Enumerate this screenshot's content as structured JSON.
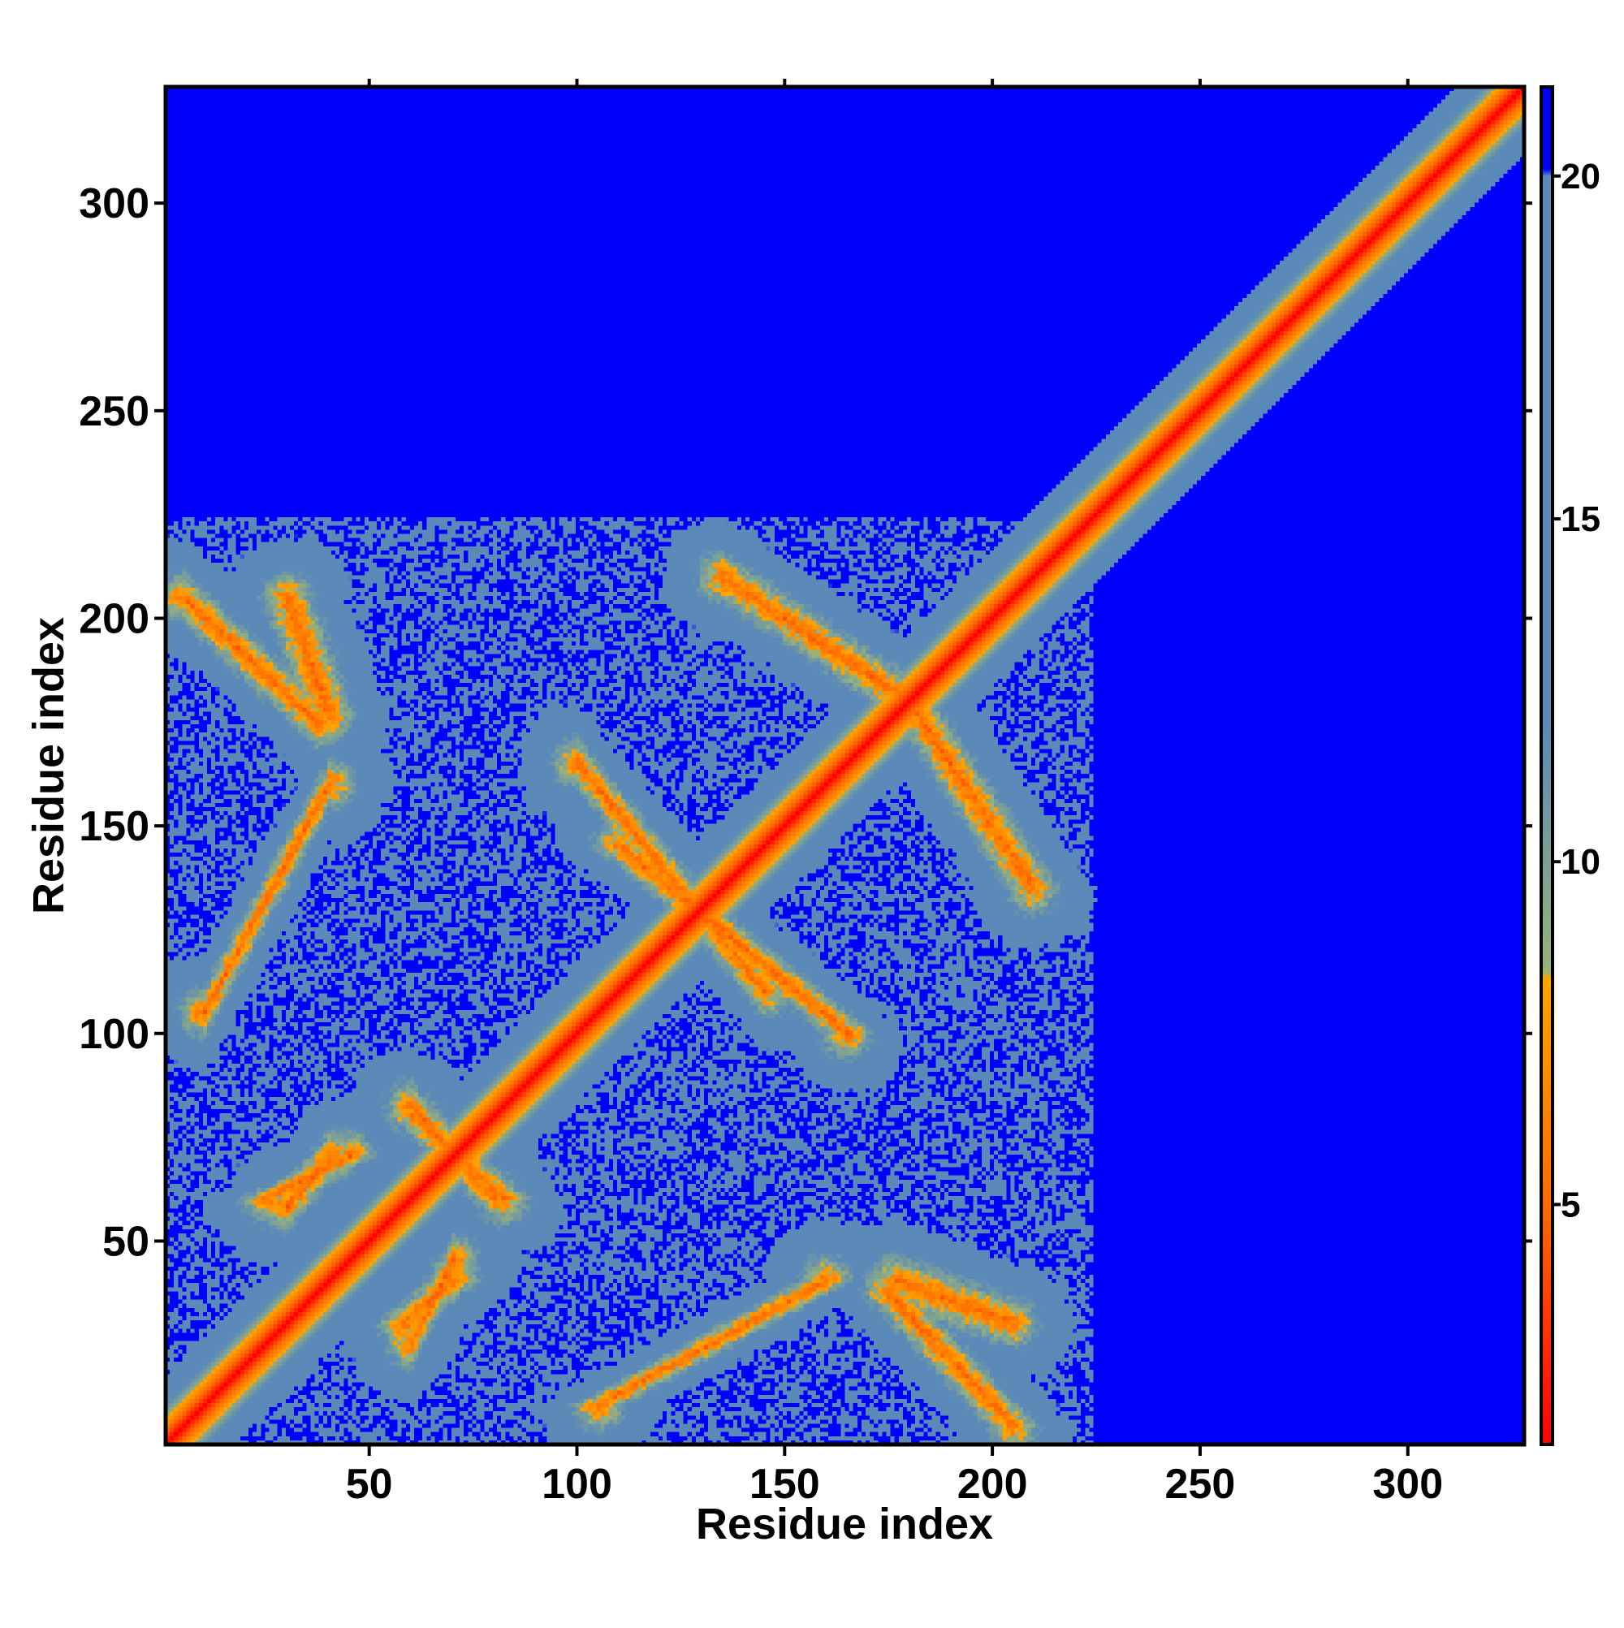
{
  "chart_data": {
    "type": "heatmap",
    "title": "",
    "xlabel": "Residue index",
    "ylabel": "Residue index",
    "n_residues": 328,
    "xlim": [
      1,
      328
    ],
    "ylim": [
      1,
      328
    ],
    "xticks": [
      50,
      100,
      150,
      200,
      250,
      300
    ],
    "yticks": [
      50,
      100,
      150,
      200,
      250,
      300
    ],
    "colorbar": {
      "min": 1.5,
      "max": 21.3,
      "ticks": [
        5,
        10,
        15,
        20
      ],
      "stops": [
        {
          "value": 1.5,
          "color": "#ff0000"
        },
        {
          "value": 5.0,
          "color": "#ff6a00"
        },
        {
          "value": 8.3,
          "color": "#ffa500"
        },
        {
          "value": 8.4,
          "color": "#99b27a"
        },
        {
          "value": 12.0,
          "color": "#5b8ab8"
        },
        {
          "value": 20.0,
          "color": "#5b8ab8"
        },
        {
          "value": 20.1,
          "color": "#0000ff"
        },
        {
          "value": 21.3,
          "color": "#0000ff"
        }
      ]
    },
    "background_color": "#0000ff",
    "grid": false,
    "legend": "right",
    "structure": {
      "diagonal_from_to": [
        1,
        328
      ],
      "antiparallel_contact_bands": [
        {
          "i_range": [
            5,
            37
          ],
          "j_range": [
            175,
            205
          ]
        },
        {
          "i_range": [
            135,
            180
          ],
          "j_range": [
            180,
            210
          ]
        },
        {
          "i_range": [
            100,
            145
          ],
          "j_range": [
            110,
            165
          ]
        },
        {
          "i_range": [
            177,
            205
          ],
          "j_range": [
            30,
            40
          ]
        },
        {
          "i_range": [
            60,
            80
          ],
          "j_range": [
            60,
            82
          ]
        }
      ],
      "parallel_contact_bands": [
        {
          "i_range": [
            10,
            40
          ],
          "j_range": [
            105,
            160
          ]
        },
        {
          "i_range": [
            60,
            70
          ],
          "j_range": [
            25,
            45
          ]
        },
        {
          "i_range": [
            30,
            40
          ],
          "j_range": [
            58,
            70
          ]
        }
      ]
    }
  }
}
